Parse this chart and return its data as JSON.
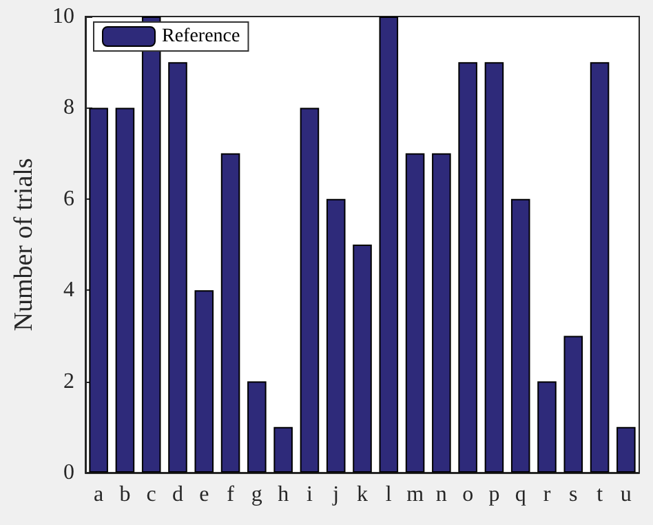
{
  "chart_data": {
    "type": "bar",
    "ylabel": "Number of trials",
    "categories": [
      "a",
      "b",
      "c",
      "d",
      "e",
      "f",
      "g",
      "h",
      "i",
      "j",
      "k",
      "l",
      "m",
      "n",
      "o",
      "p",
      "q",
      "r",
      "s",
      "t",
      "u"
    ],
    "series": [
      {
        "name": "Reference",
        "color": "#2e2a7a",
        "values": [
          8,
          8,
          10,
          9,
          4,
          7,
          2,
          1,
          8,
          6,
          5,
          10,
          7,
          7,
          9,
          9,
          6,
          2,
          3,
          9,
          1
        ]
      }
    ],
    "ylim": [
      0,
      10
    ],
    "yticks": [
      0,
      2,
      4,
      6,
      8,
      10
    ],
    "grid": false,
    "legend": "top left"
  }
}
